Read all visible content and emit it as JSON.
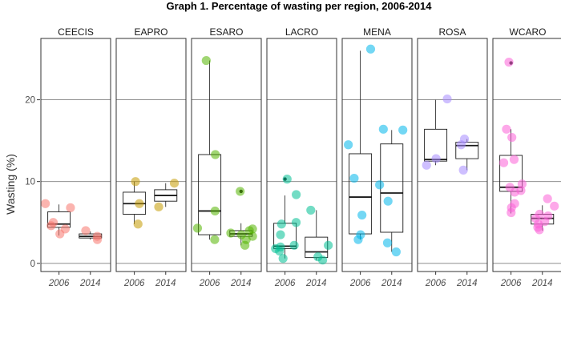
{
  "chart_data": {
    "type": "box",
    "title": "Graph 1. Percentage of wasting per region, 2006-2014",
    "ylabel": "Wasting (%)",
    "xlabel": "",
    "ylim": [
      -1,
      27.5
    ],
    "yticks": [
      0,
      10,
      20
    ],
    "grid": true,
    "years": [
      "2006",
      "2014"
    ],
    "panels": [
      {
        "region": "CEECIS",
        "color": "#F8766D",
        "groups": [
          {
            "year": "2006",
            "q1": 4.4,
            "median": 4.8,
            "q3": 6.3,
            "min": 3.4,
            "max": 7.2,
            "outliers": [],
            "points": [
              7.3,
              6.8,
              5.0,
              4.6,
              4.2,
              3.6
            ]
          },
          {
            "year": "2014",
            "q1": 3.1,
            "median": 3.3,
            "q3": 3.6,
            "min": 2.9,
            "max": 3.9,
            "outliers": [],
            "points": [
              4.0,
              3.3,
              2.9
            ]
          }
        ]
      },
      {
        "region": "EAPRO",
        "color": "#C49A00",
        "groups": [
          {
            "year": "2006",
            "q1": 6.0,
            "median": 7.3,
            "q3": 8.7,
            "min": 4.8,
            "max": 10.0,
            "outliers": [],
            "points": [
              10.0,
              7.3,
              4.8
            ]
          },
          {
            "year": "2014",
            "q1": 7.6,
            "median": 8.3,
            "q3": 9.0,
            "min": 6.9,
            "max": 9.8,
            "outliers": [],
            "points": [
              9.8,
              6.9
            ]
          }
        ]
      },
      {
        "region": "ESARO",
        "color": "#53B400",
        "groups": [
          {
            "year": "2006",
            "q1": 3.5,
            "median": 6.4,
            "q3": 13.3,
            "min": 2.9,
            "max": 24.8,
            "outliers": [],
            "points": [
              24.8,
              13.3,
              6.4,
              4.3,
              2.9
            ]
          },
          {
            "year": "2014",
            "q1": 3.3,
            "median": 3.6,
            "q3": 4.0,
            "min": 2.2,
            "max": 4.9,
            "outliers": [
              8.8
            ],
            "points": [
              8.8,
              4.2,
              4.0,
              3.7,
              3.5,
              3.3,
              2.9,
              2.2
            ]
          }
        ]
      },
      {
        "region": "LACRO",
        "color": "#00C094",
        "groups": [
          {
            "year": "2006",
            "q1": 1.8,
            "median": 2.1,
            "q3": 4.9,
            "min": 0.6,
            "max": 8.3,
            "outliers": [
              10.3
            ],
            "points": [
              10.3,
              8.4,
              5.0,
              4.8,
              3.5,
              2.2,
              2.0,
              1.8,
              1.5,
              0.6
            ]
          },
          {
            "year": "2014",
            "q1": 0.7,
            "median": 1.4,
            "q3": 3.2,
            "min": 0.4,
            "max": 6.5,
            "outliers": [],
            "points": [
              6.5,
              2.2,
              0.8,
              0.4
            ]
          }
        ]
      },
      {
        "region": "MENA",
        "color": "#00B6EB",
        "groups": [
          {
            "year": "2006",
            "q1": 3.6,
            "median": 8.1,
            "q3": 13.4,
            "min": 2.9,
            "max": 26.0,
            "outliers": [],
            "points": [
              26.2,
              14.5,
              10.4,
              5.9,
              3.5,
              2.9
            ]
          },
          {
            "year": "2014",
            "q1": 3.8,
            "median": 8.6,
            "q3": 14.6,
            "min": 1.4,
            "max": 16.3,
            "outliers": [],
            "points": [
              16.4,
              16.3,
              9.6,
              7.6,
              2.5,
              1.4
            ]
          }
        ]
      },
      {
        "region": "ROSA",
        "color": "#A58AFF",
        "groups": [
          {
            "year": "2006",
            "q1": 12.5,
            "median": 12.7,
            "q3": 16.4,
            "min": 12.0,
            "max": 20.0,
            "outliers": [],
            "points": [
              20.1,
              12.8,
              12.0
            ]
          },
          {
            "year": "2014",
            "q1": 12.8,
            "median": 14.4,
            "q3": 14.8,
            "min": 11.4,
            "max": 15.2,
            "outliers": [],
            "points": [
              15.2,
              14.5,
              11.4
            ]
          }
        ]
      },
      {
        "region": "WCARO",
        "color": "#FB61D7",
        "groups": [
          {
            "year": "2006",
            "q1": 8.8,
            "median": 9.3,
            "q3": 13.2,
            "min": 6.1,
            "max": 16.4,
            "outliers": [
              24.5
            ],
            "points": [
              24.6,
              16.4,
              15.4,
              12.7,
              12.3,
              9.7,
              9.3,
              8.9,
              8.7,
              7.3,
              6.8,
              6.2
            ]
          },
          {
            "year": "2014",
            "q1": 4.8,
            "median": 5.5,
            "q3": 6.0,
            "min": 4.0,
            "max": 7.1,
            "outliers": [],
            "points": [
              7.9,
              7.0,
              6.0,
              5.8,
              5.5,
              5.1,
              4.8,
              4.4,
              4.1
            ]
          }
        ]
      }
    ]
  }
}
